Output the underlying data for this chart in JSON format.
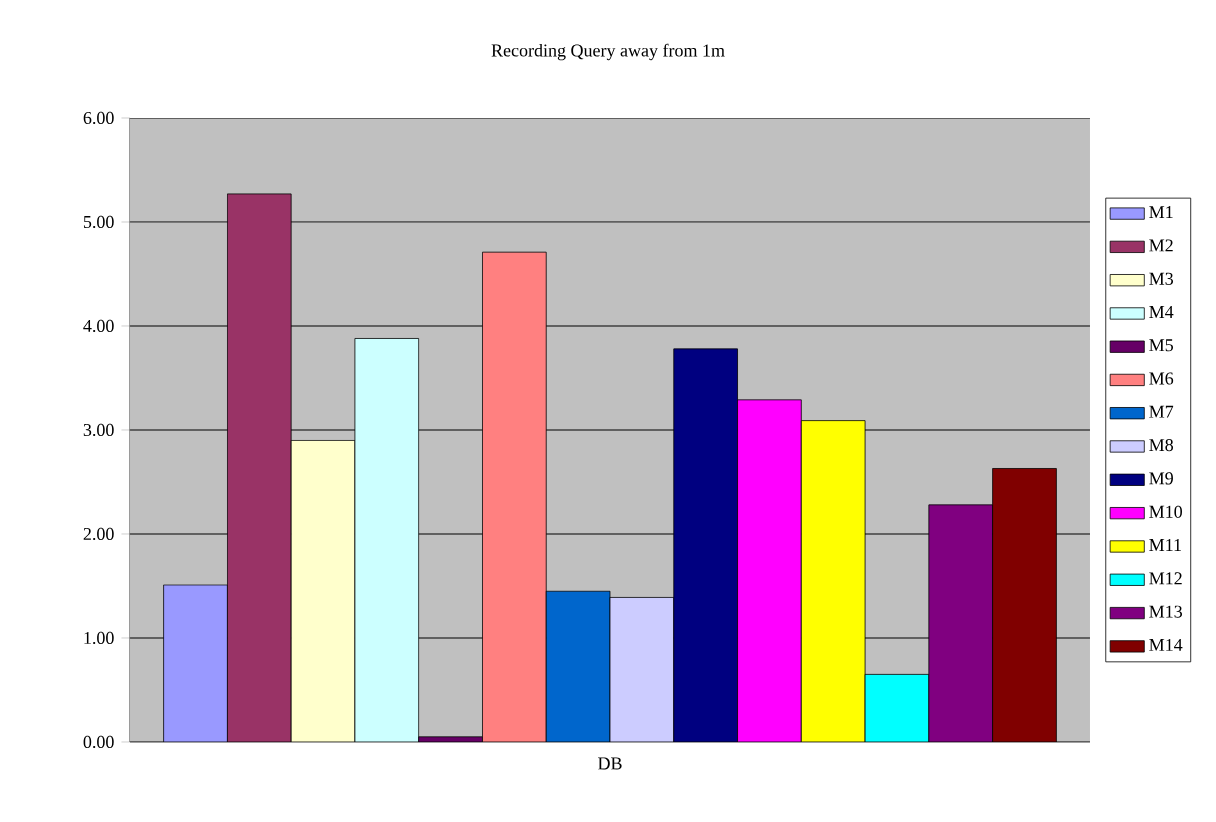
{
  "chart_data": {
    "type": "bar",
    "title": "Recording Query away from 1m",
    "categories": [
      "DB"
    ],
    "ylim": [
      0,
      6
    ],
    "yticks": [
      {
        "value": 0,
        "label": "0.00"
      },
      {
        "value": 1,
        "label": "1.00"
      },
      {
        "value": 2,
        "label": "2.00"
      },
      {
        "value": 3,
        "label": "3.00"
      },
      {
        "value": 4,
        "label": "4.00"
      },
      {
        "value": 5,
        "label": "5.00"
      },
      {
        "value": 6,
        "label": "6.00"
      }
    ],
    "grid": "y",
    "legend": "right",
    "series": [
      {
        "name": "M1",
        "color": "#9999ff",
        "values": [
          1.51
        ]
      },
      {
        "name": "M2",
        "color": "#993366",
        "values": [
          5.27
        ]
      },
      {
        "name": "M3",
        "color": "#ffffcc",
        "values": [
          2.9
        ]
      },
      {
        "name": "M4",
        "color": "#ccffff",
        "values": [
          3.88
        ]
      },
      {
        "name": "M5",
        "color": "#660066",
        "values": [
          0.05
        ]
      },
      {
        "name": "M6",
        "color": "#ff8080",
        "values": [
          4.71
        ]
      },
      {
        "name": "M7",
        "color": "#0066cc",
        "values": [
          1.45
        ]
      },
      {
        "name": "M8",
        "color": "#ccccff",
        "values": [
          1.39
        ]
      },
      {
        "name": "M9",
        "color": "#000080",
        "values": [
          3.78
        ]
      },
      {
        "name": "M10",
        "color": "#ff00ff",
        "values": [
          3.29
        ]
      },
      {
        "name": "M11",
        "color": "#ffff00",
        "values": [
          3.09
        ]
      },
      {
        "name": "M12",
        "color": "#00ffff",
        "values": [
          0.65
        ]
      },
      {
        "name": "M13",
        "color": "#800080",
        "values": [
          2.28
        ]
      },
      {
        "name": "M14",
        "color": "#800000",
        "values": [
          2.63
        ]
      }
    ]
  }
}
